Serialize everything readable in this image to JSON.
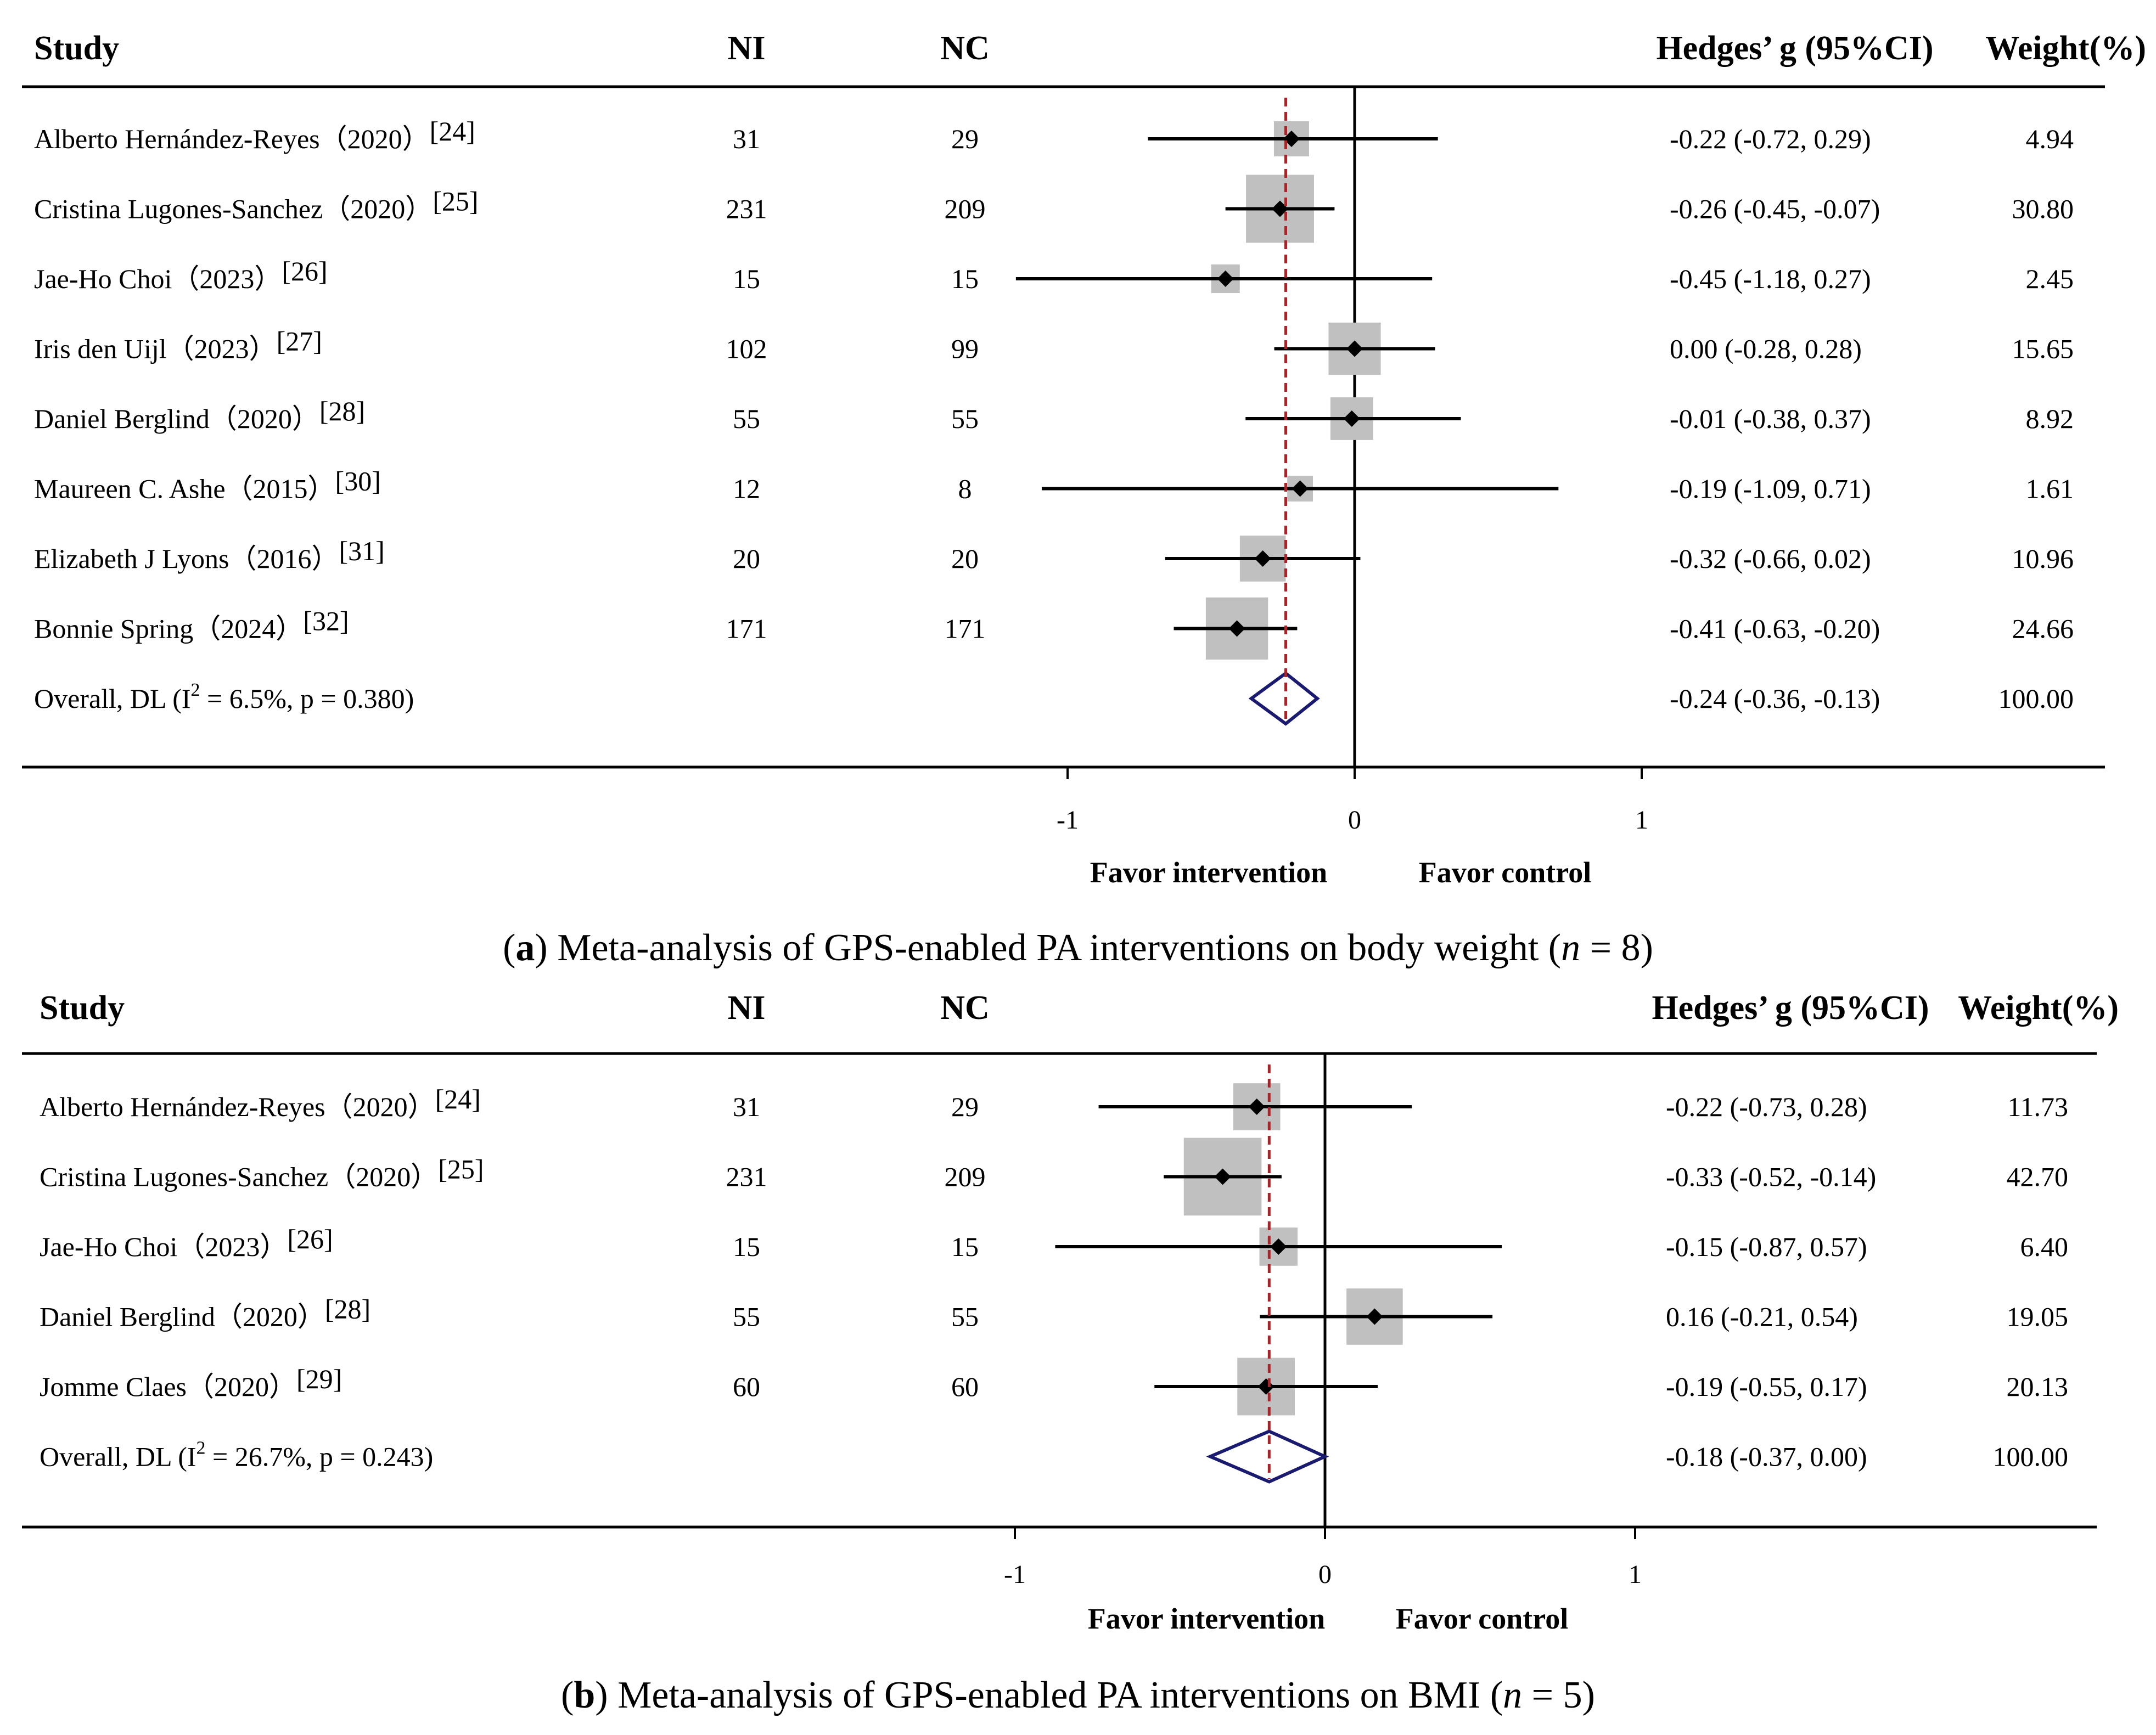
{
  "chart_data": [
    {
      "type": "forest",
      "panel_label": "a",
      "caption_text": "Meta-analysis of GPS-enabled PA interventions on body weight",
      "caption_n": "8",
      "columns": {
        "study": "Study",
        "ni": "NI",
        "nc": "NC",
        "effect": "Hedges’ g (95%CI)",
        "weight": "Weight(%)"
      },
      "studies": [
        {
          "name": "Alberto  Hernández-Reyes（2020）",
          "ref": "[24]",
          "ni": "31",
          "nc": "29",
          "g": -0.22,
          "lo": -0.72,
          "hi": 0.29,
          "effect_text": "-0.22 (-0.72, 0.29)",
          "weight": "4.94"
        },
        {
          "name": "Cristina  Lugones-Sanchez（2020）",
          "ref": "[25]",
          "ni": "231",
          "nc": "209",
          "g": -0.26,
          "lo": -0.45,
          "hi": -0.07,
          "effect_text": "-0.26 (-0.45, -0.07)",
          "weight": "30.80"
        },
        {
          "name": "Jae-Ho  Choi（2023）",
          "ref": "[26]",
          "ni": "15",
          "nc": "15",
          "g": -0.45,
          "lo": -1.18,
          "hi": 0.27,
          "effect_text": "-0.45 (-1.18, 0.27)",
          "weight": "2.45"
        },
        {
          "name": "Iris den Uijl（2023）",
          "ref": "[27]",
          "ni": "102",
          "nc": "99",
          "g": 0.0,
          "lo": -0.28,
          "hi": 0.28,
          "effect_text": "0.00 (-0.28, 0.28)",
          "weight": "15.65"
        },
        {
          "name": "Daniel  Berglind（2020）",
          "ref": "[28]",
          "ni": "55",
          "nc": "55",
          "g": -0.01,
          "lo": -0.38,
          "hi": 0.37,
          "effect_text": "-0.01 (-0.38, 0.37)",
          "weight": "8.92"
        },
        {
          "name": "Maureen  C.  Ashe（2015）",
          "ref": "[30]",
          "ni": "12",
          "nc": "8",
          "g": -0.19,
          "lo": -1.09,
          "hi": 0.71,
          "effect_text": "-0.19 (-1.09, 0.71)",
          "weight": "1.61"
        },
        {
          "name": "Elizabeth J Lyons（2016）",
          "ref": "[31]",
          "ni": "20",
          "nc": "20",
          "g": -0.32,
          "lo": -0.66,
          "hi": 0.02,
          "effect_text": "-0.32 (-0.66, 0.02)",
          "weight": "10.96"
        },
        {
          "name": "Bonnie  Spring（2024）",
          "ref": "[32]",
          "ni": "171",
          "nc": "171",
          "g": -0.41,
          "lo": -0.63,
          "hi": -0.2,
          "effect_text": "-0.41 (-0.63, -0.20)",
          "weight": "24.66"
        }
      ],
      "overall": {
        "label_pre": "Overall, DL (I",
        "label_sup": "2",
        "label_post": " = 6.5%, p = 0.380)",
        "g": -0.24,
        "lo": -0.36,
        "hi": -0.13,
        "effect_text": "-0.24 (-0.36, -0.13)",
        "weight": "100.00"
      },
      "x_ticks": [
        -1,
        0,
        1
      ],
      "xlim": [
        -1.5,
        1.0
      ],
      "favor_left": "Favor intervention",
      "favor_right": "Favor control"
    },
    {
      "type": "forest",
      "panel_label": "b",
      "caption_text": "Meta-analysis of GPS-enabled PA interventions on BMI",
      "caption_n": "5",
      "columns": {
        "study": "Study",
        "ni": "NI",
        "nc": "NC",
        "effect": "Hedges’ g (95%CI)",
        "weight": "Weight(%)"
      },
      "studies": [
        {
          "name": "Alberto  Hernández-Reyes（2020）",
          "ref": "[24]",
          "ni": "31",
          "nc": "29",
          "g": -0.22,
          "lo": -0.73,
          "hi": 0.28,
          "effect_text": "-0.22 (-0.73, 0.28)",
          "weight": "11.73"
        },
        {
          "name": "Cristina  Lugones-Sanchez（2020）",
          "ref": "[25]",
          "ni": "231",
          "nc": "209",
          "g": -0.33,
          "lo": -0.52,
          "hi": -0.14,
          "effect_text": "-0.33 (-0.52, -0.14)",
          "weight": "42.70"
        },
        {
          "name": "Jae-Ho  Choi（2023）",
          "ref": "[26]",
          "ni": "15",
          "nc": "15",
          "g": -0.15,
          "lo": -0.87,
          "hi": 0.57,
          "effect_text": "-0.15 (-0.87, 0.57)",
          "weight": "6.40"
        },
        {
          "name": "Daniel  Berglind（2020）",
          "ref": "[28]",
          "ni": "55",
          "nc": "55",
          "g": 0.16,
          "lo": -0.21,
          "hi": 0.54,
          "effect_text": "0.16 (-0.21, 0.54)",
          "weight": "19.05"
        },
        {
          "name": "Jomme  Claes（2020）",
          "ref": "[29]",
          "ni": "60",
          "nc": "60",
          "g": -0.19,
          "lo": -0.55,
          "hi": 0.17,
          "effect_text": "-0.19 (-0.55, 0.17)",
          "weight": "20.13"
        }
      ],
      "overall": {
        "label_pre": "Overall, DL (I",
        "label_sup": "2",
        "label_post": " = 26.7%, p = 0.243)",
        "g": -0.18,
        "lo": -0.37,
        "hi": 0.0,
        "effect_text": "-0.18 (-0.37, 0.00)",
        "weight": "100.00"
      },
      "x_ticks": [
        -1,
        0,
        1
      ],
      "xlim": [
        -1.5,
        1.0
      ],
      "favor_left": "Favor intervention",
      "favor_right": "Favor control"
    }
  ],
  "colors": {
    "ci_line": "#000000",
    "weight_box": "#c0c0c0",
    "point": "#000000",
    "reference_dash": "#a0282d",
    "diamond": "#1a1a6e"
  }
}
